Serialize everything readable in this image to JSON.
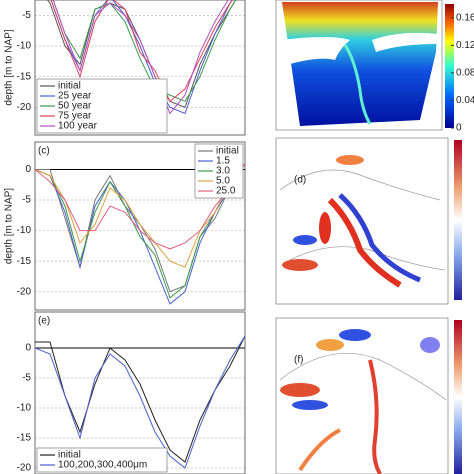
{
  "chart_data": [
    {
      "type": "line",
      "ylabel": "depth [m to NAP]",
      "ylim": [
        -24.5,
        -2.5
      ],
      "yticks": [
        -5,
        -10,
        -15,
        -20
      ],
      "grid": true,
      "legend": "lower left",
      "series": [
        {
          "name": "initial",
          "color": "#555555",
          "values": [
            0,
            -3,
            -10,
            -13,
            -4,
            -3,
            -4,
            -9,
            -15,
            -19,
            -20,
            -13,
            -8,
            -4,
            0
          ]
        },
        {
          "name": "25 year",
          "color": "#4a5fd0",
          "values": [
            0,
            -2,
            -9,
            -14,
            -5,
            -2,
            -5,
            -10,
            -16,
            -20,
            -21,
            -14,
            -8,
            -3,
            0
          ]
        },
        {
          "name": "50 year",
          "color": "#3a9a4a",
          "values": [
            0,
            -1,
            -8,
            -12,
            -4,
            -3,
            -6,
            -12,
            -17,
            -18,
            -19,
            -15,
            -9,
            -4,
            0
          ]
        },
        {
          "name": "75 year",
          "color": "#e0405a",
          "values": [
            0,
            -2,
            -9,
            -15,
            -6,
            -2,
            -4,
            -11,
            -14,
            -19,
            -17,
            -12,
            -7,
            -3,
            0
          ]
        },
        {
          "name": "100 year",
          "color": "#b050c0",
          "values": [
            0,
            -1,
            -8,
            -14,
            -5,
            -3,
            -5,
            -9,
            -15,
            -21,
            -18,
            -11,
            -6,
            -2,
            0
          ]
        }
      ]
    },
    {
      "type": "map",
      "clim": [
        0,
        0.18
      ],
      "cticks": [
        0.16,
        0.12,
        0.08,
        0.04,
        0
      ]
    },
    {
      "type": "line",
      "label": "(c)",
      "ylabel": "depth [m to NAP]",
      "ylim": [
        -23,
        4.5
      ],
      "yticks": [
        0,
        -5,
        -10,
        -15,
        -20
      ],
      "grid": true,
      "legend": "upper right",
      "series": [
        {
          "name": "initial",
          "color": "#777777",
          "values": [
            0,
            0,
            -8,
            -16,
            -5,
            -1,
            -6,
            -9,
            -13,
            -20,
            -19,
            -11,
            -8,
            -3,
            1
          ]
        },
        {
          "name": "1.5",
          "color": "#4a5fd0",
          "values": [
            0,
            -1,
            -7,
            -16,
            -6,
            -2,
            -5,
            -10,
            -16,
            -22,
            -20,
            -12,
            -7,
            -3,
            1
          ]
        },
        {
          "name": "3.0",
          "color": "#3a9a4a",
          "values": [
            0,
            -1,
            -6,
            -15,
            -7,
            -2,
            -6,
            -11,
            -14,
            -21,
            -19,
            -11,
            -7,
            -2,
            1
          ]
        },
        {
          "name": "5.0",
          "color": "#e0a040",
          "values": [
            0,
            -1,
            -5,
            -12,
            -9,
            -3,
            -5,
            -9,
            -12,
            -15,
            -16,
            -10,
            -7,
            -2,
            1
          ]
        },
        {
          "name": "25.0",
          "color": "#e06080",
          "values": [
            0,
            -2,
            -5,
            -10,
            -10,
            -6,
            -7,
            -10,
            -12,
            -13,
            -12,
            -10,
            -6,
            -3,
            1
          ]
        }
      ]
    },
    {
      "type": "map",
      "label": "(d)"
    },
    {
      "type": "line",
      "label": "(e)",
      "ylim": [
        -21,
        6
      ],
      "yticks": [
        0,
        -5,
        -10,
        -15,
        -20
      ],
      "grid": true,
      "legend": "lower left",
      "series": [
        {
          "name": "initial",
          "color": "#222222",
          "values": [
            1,
            1,
            -8,
            -14,
            -6,
            0,
            -2,
            -6,
            -12,
            -17,
            -19,
            -12,
            -7,
            -3,
            2
          ]
        },
        {
          "name": "100,200,300,400μm",
          "color": "#4a5fd0",
          "values": [
            0,
            -1,
            -8,
            -15,
            -5,
            -1,
            -3,
            -8,
            -14,
            -18,
            -20,
            -13,
            -7,
            -2,
            2
          ]
        }
      ]
    },
    {
      "type": "map",
      "label": "(f)"
    }
  ]
}
